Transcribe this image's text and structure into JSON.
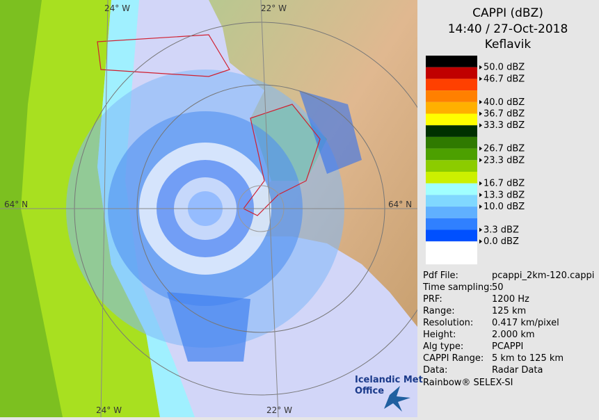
{
  "header": {
    "title": "CAPPI (dBZ)",
    "time": "14:40 / 27-Oct-2018",
    "site": "Keflavik"
  },
  "map": {
    "grid_labels": {
      "top_left": "24° W",
      "top_right": "22° W",
      "bottom_left": "24° W",
      "bottom_right": "22° W",
      "left": "64° N",
      "right": "64° N"
    }
  },
  "legend": {
    "swatches": [
      "#000000",
      "#c00000",
      "#ff4000",
      "#ff8000",
      "#ffb000",
      "#ffff00",
      "#003000",
      "#2f7a00",
      "#4ca000",
      "#8ccc00",
      "#ccf000",
      "#a0ffff",
      "#80d8ff",
      "#60b0ff",
      "#3080ff",
      "#0050ff",
      "#ffffff"
    ],
    "labels": [
      "50.0 dBZ",
      "46.7 dBZ",
      null,
      "40.0 dBZ",
      "36.7 dBZ",
      "33.3 dBZ",
      null,
      "26.7 dBZ",
      "23.3 dBZ",
      null,
      "16.7 dBZ",
      "13.3 dBZ",
      "10.0 dBZ",
      null,
      "3.3 dBZ",
      "0.0 dBZ",
      null
    ]
  },
  "info": {
    "rows": [
      [
        "Pdf File:",
        "pcappi_2km-120.cappi"
      ],
      [
        "Time sampling:",
        "50"
      ],
      [
        "PRF:",
        "1200 Hz"
      ],
      [
        "Range:",
        "125 km"
      ],
      [
        "Resolution:",
        "0.417 km/pixel"
      ],
      [
        "Height:",
        "2.000 km"
      ],
      [
        "Alg type:",
        "PCAPPI"
      ],
      [
        "CAPPI Range:",
        "5 km to 125 km"
      ],
      [
        "Data:",
        "Radar Data"
      ]
    ],
    "footer": "Rainbow® SELEX-SI"
  },
  "logo": {
    "line1": "Icelandic Met",
    "line2": "Office"
  }
}
